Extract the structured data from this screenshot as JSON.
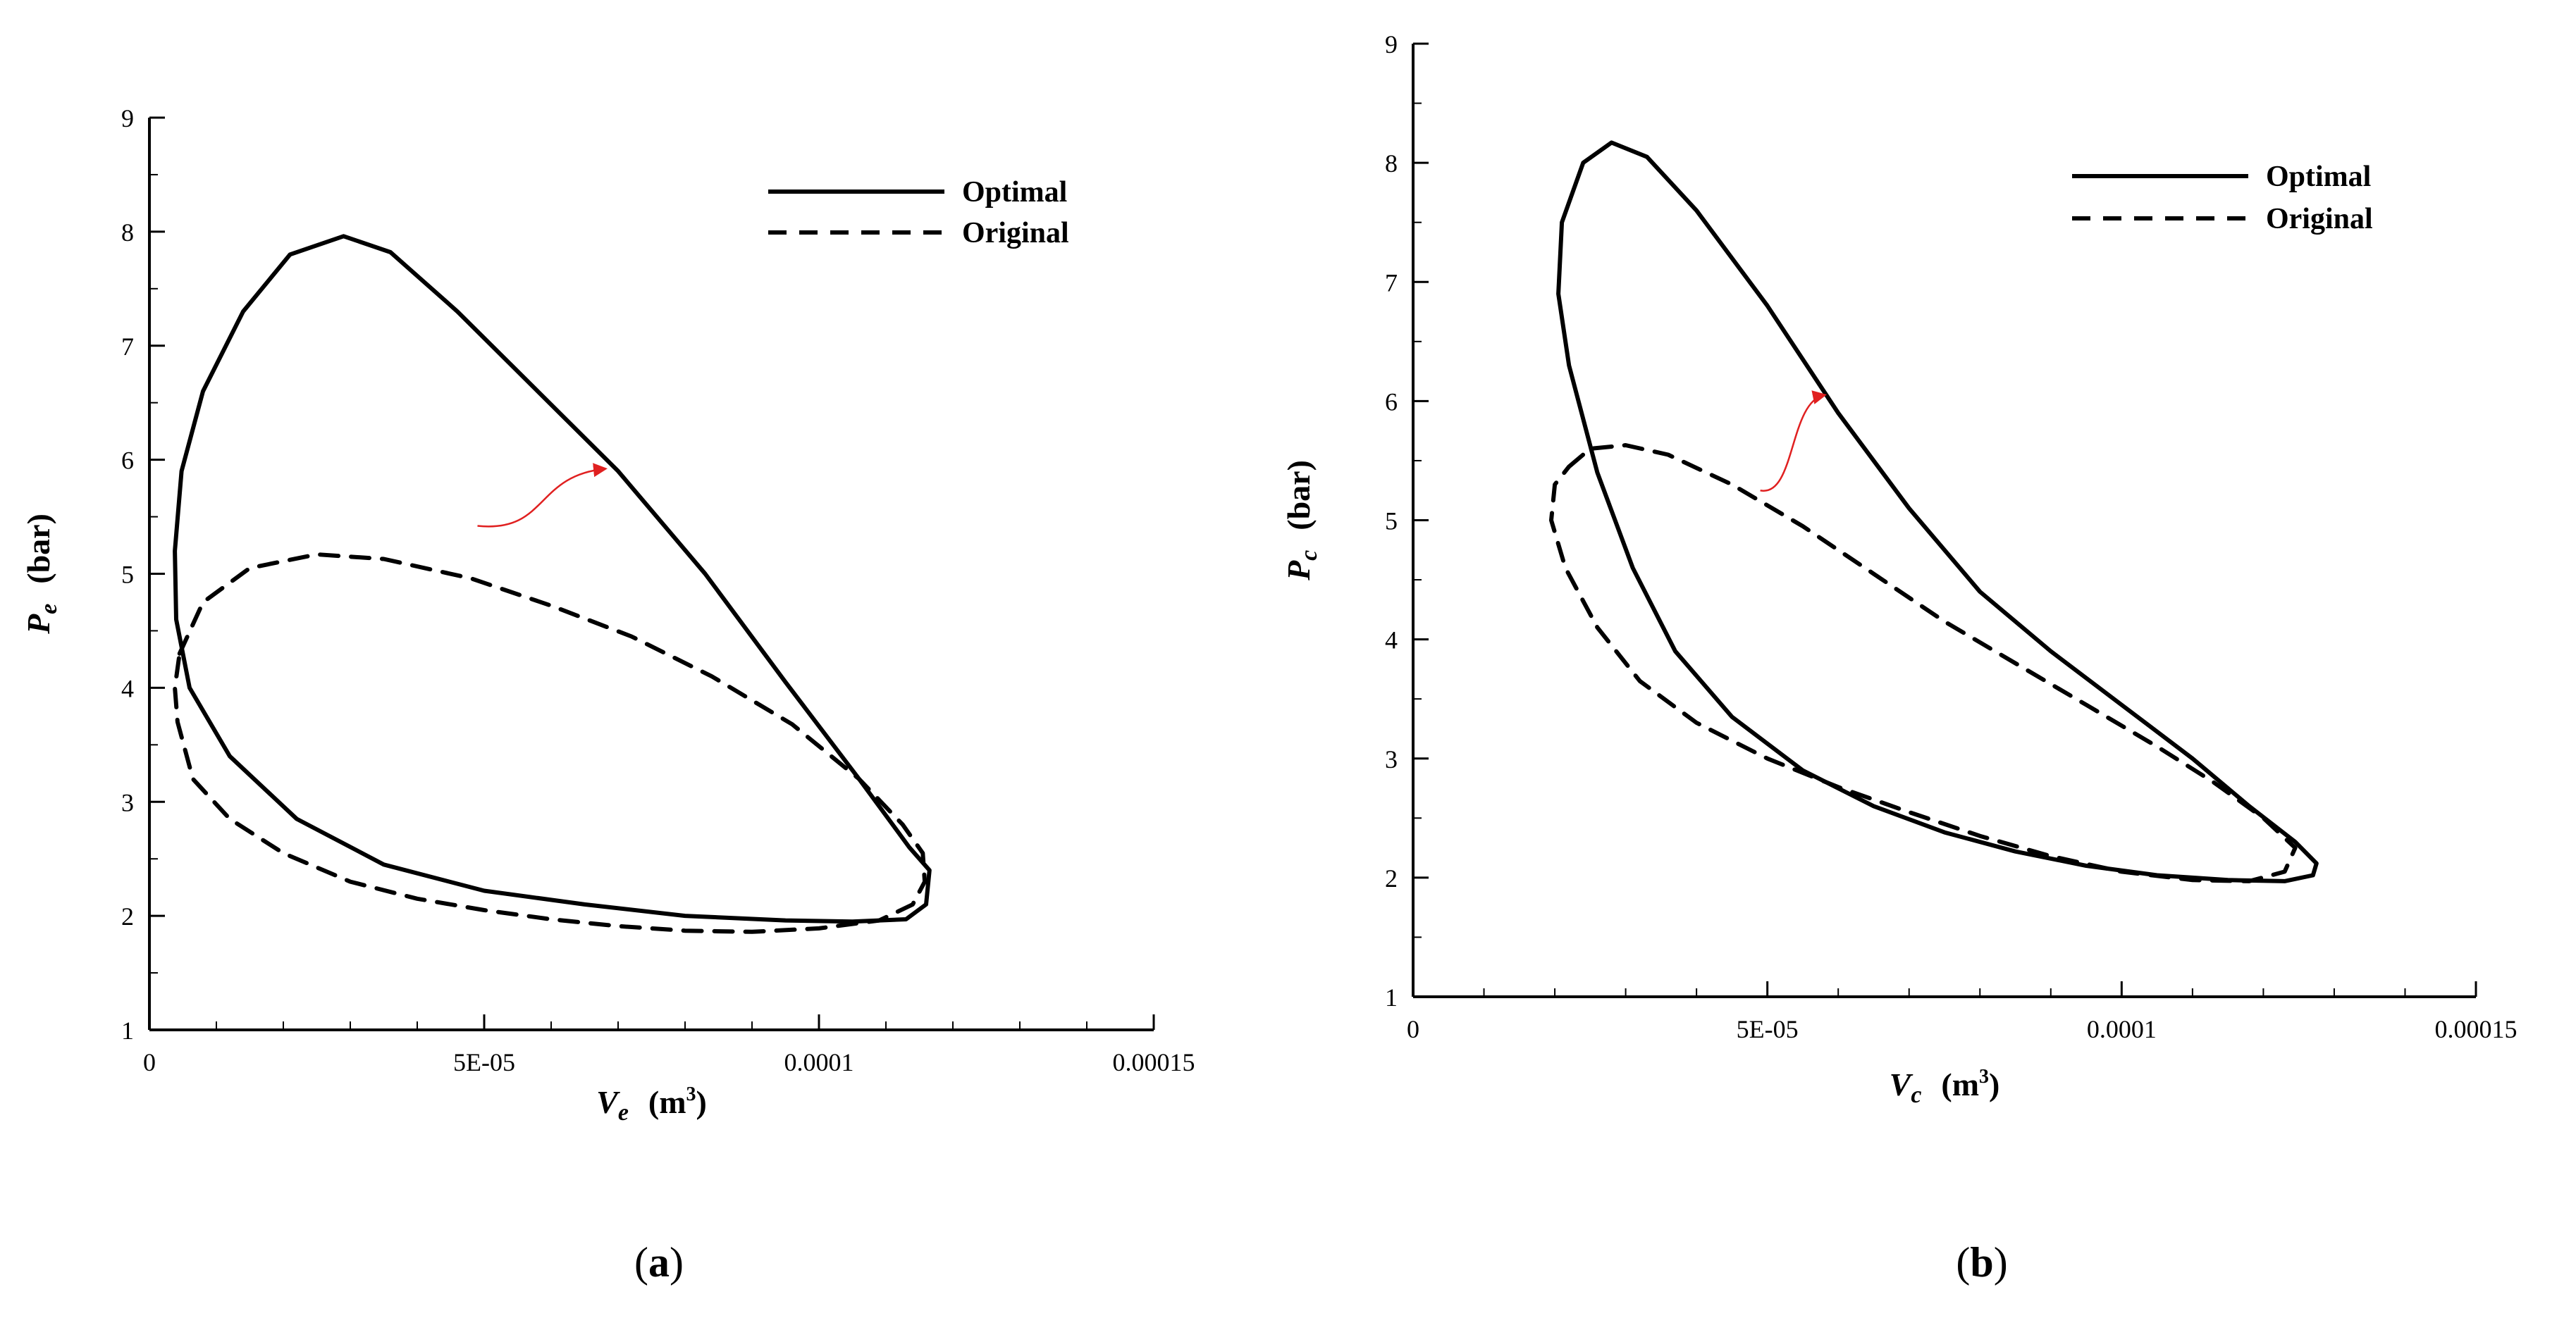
{
  "figure": {
    "panels": [
      "a",
      "b"
    ]
  },
  "chart_data": [
    {
      "id": "a",
      "type": "line",
      "caption": "a",
      "title": "",
      "xlabel": {
        "symbol": "V",
        "subscript": "e",
        "unit_open": "(m",
        "unit_sup": "3",
        "unit_close": ")"
      },
      "ylabel": {
        "symbol": "P",
        "subscript": "e",
        "unit": "(bar)"
      },
      "xlim": [
        0,
        0.00015
      ],
      "ylim": [
        1,
        9
      ],
      "xticks": [
        0,
        5e-05,
        0.0001,
        0.00015
      ],
      "xtick_labels": [
        "0",
        "5E-05",
        "0.0001",
        "0.00015"
      ],
      "yticks": [
        1,
        2,
        3,
        4,
        5,
        6,
        7,
        8,
        9
      ],
      "ytick_labels": [
        "1",
        "2",
        "3",
        "4",
        "5",
        "6",
        "7",
        "8",
        "9"
      ],
      "legend": {
        "position": "top-right",
        "entries": [
          {
            "label": "Optimal",
            "style": "solid"
          },
          {
            "label": "Original",
            "style": "dashed"
          }
        ]
      },
      "annotation": {
        "type": "arrow",
        "color": "#e02020",
        "from": [
          4.9e-05,
          5.42
        ],
        "to": [
          6.8e-05,
          5.92
        ]
      },
      "series": [
        {
          "name": "Optimal",
          "style": "solid",
          "closed": true,
          "points": [
            [
              2.9e-05,
              7.96
            ],
            [
              3.6e-05,
              7.82
            ],
            [
              4.6e-05,
              7.3
            ],
            [
              5.8e-05,
              6.6
            ],
            [
              7e-05,
              5.9
            ],
            [
              8.3e-05,
              5.0
            ],
            [
              9.5e-05,
              4.05
            ],
            [
              0.000106,
              3.2
            ],
            [
              0.0001135,
              2.6
            ],
            [
              0.0001165,
              2.4
            ],
            [
              0.000116,
              2.1
            ],
            [
              0.000113,
              1.97
            ],
            [
              0.000105,
              1.95
            ],
            [
              9.5e-05,
              1.96
            ],
            [
              8e-05,
              2.0
            ],
            [
              6.5e-05,
              2.1
            ],
            [
              5e-05,
              2.22
            ],
            [
              3.5e-05,
              2.45
            ],
            [
              2.2e-05,
              2.85
            ],
            [
              1.2e-05,
              3.4
            ],
            [
              6e-06,
              4.0
            ],
            [
              4e-06,
              4.6
            ],
            [
              3.8e-06,
              5.2
            ],
            [
              4.8e-06,
              5.9
            ],
            [
              8e-06,
              6.6
            ],
            [
              1.4e-05,
              7.3
            ],
            [
              2.1e-05,
              7.8
            ],
            [
              2.9e-05,
              7.96
            ]
          ]
        },
        {
          "name": "Original",
          "style": "dashed",
          "closed": true,
          "points": [
            [
              4.5e-06,
              4.3
            ],
            [
              8e-06,
              4.75
            ],
            [
              1.5e-05,
              5.05
            ],
            [
              2.5e-05,
              5.17
            ],
            [
              3.5e-05,
              5.13
            ],
            [
              4.8e-05,
              4.96
            ],
            [
              6e-05,
              4.72
            ],
            [
              7.2e-05,
              4.45
            ],
            [
              8.4e-05,
              4.1
            ],
            [
              9.6e-05,
              3.68
            ],
            [
              0.000106,
              3.2
            ],
            [
              0.0001125,
              2.8
            ],
            [
              0.0001155,
              2.55
            ],
            [
              0.0001158,
              2.3
            ],
            [
              0.000114,
              2.1
            ],
            [
              0.000109,
              1.96
            ],
            [
              0.0001,
              1.89
            ],
            [
              9e-05,
              1.86
            ],
            [
              8e-05,
              1.87
            ],
            [
              7e-05,
              1.91
            ],
            [
              6e-05,
              1.97
            ],
            [
              5e-05,
              2.05
            ],
            [
              4e-05,
              2.15
            ],
            [
              3e-05,
              2.3
            ],
            [
              2e-05,
              2.55
            ],
            [
              1.2e-05,
              2.85
            ],
            [
              6.5e-06,
              3.2
            ],
            [
              4.2e-06,
              3.7
            ],
            [
              3.8e-06,
              4.0
            ],
            [
              4.5e-06,
              4.3
            ]
          ]
        }
      ]
    },
    {
      "id": "b",
      "type": "line",
      "caption": "b",
      "title": "",
      "xlabel": {
        "symbol": "V",
        "subscript": "c",
        "unit_open": "(m",
        "unit_sup": "3",
        "unit_close": ")"
      },
      "ylabel": {
        "symbol": "P",
        "subscript": "c",
        "unit": "(bar)"
      },
      "xlim": [
        0,
        0.00015
      ],
      "ylim": [
        1,
        9
      ],
      "xticks": [
        0,
        5e-05,
        0.0001,
        0.00015
      ],
      "xtick_labels": [
        "0",
        "5E-05",
        "0.0001",
        "0.00015"
      ],
      "yticks": [
        1,
        2,
        3,
        4,
        5,
        6,
        7,
        8,
        9
      ],
      "ytick_labels": [
        "1",
        "2",
        "3",
        "4",
        "5",
        "6",
        "7",
        "8",
        "9"
      ],
      "legend": {
        "position": "top-right",
        "entries": [
          {
            "label": "Optimal",
            "style": "solid"
          },
          {
            "label": "Original",
            "style": "dashed"
          }
        ]
      },
      "annotation": {
        "type": "arrow",
        "color": "#e02020",
        "from": [
          4.9e-05,
          5.25
        ],
        "to": [
          5.8e-05,
          6.05
        ]
      },
      "series": [
        {
          "name": "Optimal",
          "style": "solid",
          "closed": true,
          "points": [
            [
              2.8e-05,
              8.17
            ],
            [
              3.3e-05,
              8.05
            ],
            [
              4e-05,
              7.6
            ],
            [
              5e-05,
              6.8
            ],
            [
              6e-05,
              5.9
            ],
            [
              7e-05,
              5.1
            ],
            [
              8e-05,
              4.4
            ],
            [
              9e-05,
              3.9
            ],
            [
              0.0001,
              3.45
            ],
            [
              0.00011,
              3.0
            ],
            [
              0.000118,
              2.6
            ],
            [
              0.0001245,
              2.3
            ],
            [
              0.0001275,
              2.12
            ],
            [
              0.000127,
              2.02
            ],
            [
              0.000123,
              1.97
            ],
            [
              0.000115,
              1.98
            ],
            [
              0.000105,
              2.02
            ],
            [
              9.5e-05,
              2.1
            ],
            [
              8.5e-05,
              2.22
            ],
            [
              7.5e-05,
              2.38
            ],
            [
              6.5e-05,
              2.6
            ],
            [
              5.5e-05,
              2.9
            ],
            [
              4.5e-05,
              3.35
            ],
            [
              3.7e-05,
              3.9
            ],
            [
              3.1e-05,
              4.6
            ],
            [
              2.6e-05,
              5.4
            ],
            [
              2.2e-05,
              6.3
            ],
            [
              2.05e-05,
              6.9
            ],
            [
              2.1e-05,
              7.5
            ],
            [
              2.4e-05,
              8.0
            ],
            [
              2.8e-05,
              8.17
            ]
          ]
        },
        {
          "name": "Original",
          "style": "dashed",
          "closed": true,
          "points": [
            [
              2.2e-05,
              5.45
            ],
            [
              2.5e-05,
              5.6
            ],
            [
              3e-05,
              5.63
            ],
            [
              3.6e-05,
              5.55
            ],
            [
              4.5e-05,
              5.3
            ],
            [
              5.5e-05,
              4.95
            ],
            [
              6.5e-05,
              4.55
            ],
            [
              7.5e-05,
              4.15
            ],
            [
              8.5e-05,
              3.8
            ],
            [
              9.5e-05,
              3.45
            ],
            [
              0.000105,
              3.1
            ],
            [
              0.000113,
              2.8
            ],
            [
              0.00012,
              2.5
            ],
            [
              0.0001245,
              2.25
            ],
            [
              0.000123,
              2.05
            ],
            [
              0.000118,
              1.97
            ],
            [
              0.00011,
              1.98
            ],
            [
              0.0001,
              2.05
            ],
            [
              9e-05,
              2.18
            ],
            [
              8e-05,
              2.35
            ],
            [
              7e-05,
              2.55
            ],
            [
              6e-05,
              2.76
            ],
            [
              5e-05,
              3.0
            ],
            [
              4e-05,
              3.3
            ],
            [
              3.2e-05,
              3.65
            ],
            [
              2.6e-05,
              4.1
            ],
            [
              2.15e-05,
              4.6
            ],
            [
              1.95e-05,
              5.0
            ],
            [
              2e-05,
              5.3
            ],
            [
              2.2e-05,
              5.45
            ]
          ]
        }
      ]
    }
  ]
}
